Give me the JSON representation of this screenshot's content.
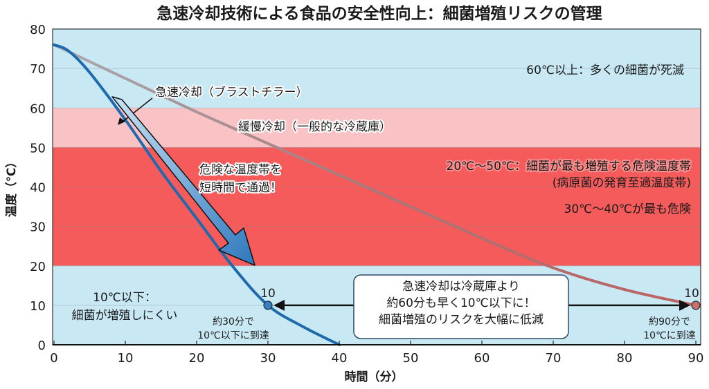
{
  "chart_data": {
    "type": "line",
    "title": "急速冷却技術による食品の安全性向上：細菌増殖リスクの管理",
    "xlabel": "時間（分）",
    "ylabel": "温度（℃）",
    "xlim": [
      0,
      90
    ],
    "ylim": [
      0,
      80
    ],
    "xticks": [
      0,
      10,
      20,
      30,
      40,
      50,
      60,
      70,
      80,
      90
    ],
    "yticks": [
      0,
      10,
      20,
      30,
      40,
      50,
      60,
      70,
      80
    ],
    "grid": true,
    "bands": [
      {
        "from": 60,
        "to": 80,
        "color": "#c8e8f4",
        "label": "60℃以上：多くの細菌が死滅"
      },
      {
        "from": 50,
        "to": 60,
        "color": "#f9c3c5",
        "label": ""
      },
      {
        "from": 20,
        "to": 50,
        "color": "#f55b5b",
        "label": "20℃〜50℃：細菌が最も増殖する危険温度帯",
        "sublabel": "(病原菌の発育至適温度帯)",
        "note": "30℃〜40℃が最も危険"
      },
      {
        "from": 0,
        "to": 20,
        "color": "#c8e8f4",
        "label": "10℃以下：",
        "sublabel": "細菌が増殖しにくい"
      }
    ],
    "series": [
      {
        "name": "急速冷却（ブラストチラー）",
        "color": "#1f6aad",
        "x": [
          0,
          2,
          5,
          10,
          15,
          20,
          25,
          30,
          35,
          40
        ],
        "y": [
          76,
          74.5,
          69,
          57,
          44,
          32,
          20,
          10,
          4.5,
          0
        ]
      },
      {
        "name": "緩慢冷却（一般的な冷蔵庫）",
        "color": "#b86666",
        "x": [
          0,
          10,
          20,
          30,
          40,
          50,
          60,
          70,
          80,
          90
        ],
        "y": [
          76,
          67.5,
          59,
          51,
          43,
          35,
          27,
          19.5,
          14,
          10
        ]
      }
    ],
    "markers": [
      {
        "x": 30,
        "y": 10,
        "label": "10",
        "color": "#3a7fc0",
        "note": [
          "約30分で",
          "10℃以下に到達"
        ]
      },
      {
        "x": 90,
        "y": 10,
        "label": "10",
        "color": "#c8706a",
        "note": [
          "約90分で",
          "10℃に到達"
        ]
      }
    ],
    "arrow_label": [
      "危険な温度帯を",
      "短時間で通過！"
    ],
    "callout": [
      "急速冷却は冷蔵庫より",
      "約60分も早く10℃以下に！",
      "細菌増殖のリスクを大幅に低減"
    ]
  }
}
